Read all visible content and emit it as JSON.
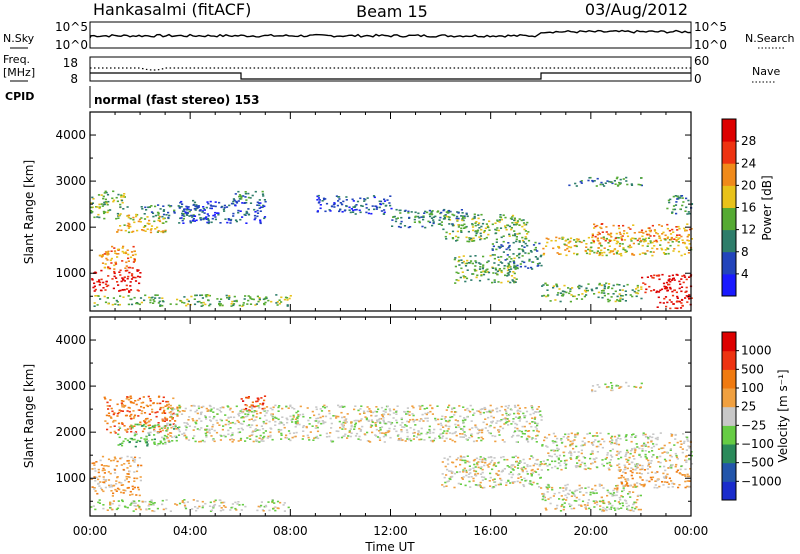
{
  "header": {
    "station": "Hankasalmi (fitACF)",
    "beam": "Beam 15",
    "date": "03/Aug/2012"
  },
  "top_panels": {
    "nsky_label": "N.Sky",
    "nsearch_label": "N.Search",
    "noise_ticks": [
      "10^5",
      "10^0"
    ],
    "freq_label_1": "Freq.",
    "freq_label_2": "[MHz]",
    "freq_ticks": [
      "18",
      "8"
    ],
    "nave_label": "Nave",
    "nave_ticks": [
      "60",
      "0"
    ],
    "cpid_label": "CPID",
    "cpid_value": "normal (fast stereo) 153"
  },
  "x_axis": {
    "title": "Time UT",
    "ticks": [
      "00:00",
      "04:00",
      "08:00",
      "12:00",
      "16:00",
      "20:00",
      "00:00"
    ]
  },
  "chart_data": [
    {
      "type": "heatmap",
      "name": "power",
      "ylabel": "Slant Range [km]",
      "ylim": [
        180,
        4500
      ],
      "yticks": [
        1000,
        2000,
        3000,
        4000
      ],
      "xlim_hours": [
        0,
        24
      ],
      "colorbar_label": "Power [dB]",
      "colorbar_ticks": [
        "4",
        "8",
        "12",
        "16",
        "20",
        "24",
        "28"
      ],
      "colorbar_colors": [
        "#1a1aff",
        "#2244bb",
        "#2e7d6a",
        "#55aa33",
        "#e8c21a",
        "#f08a1a",
        "#ee3311",
        "#dd0000"
      ],
      "echo_regions": [
        {
          "t": [
            0.0,
            2.0
          ],
          "r": [
            600,
            1100
          ],
          "level": 7
        },
        {
          "t": [
            0.3,
            1.8
          ],
          "r": [
            1100,
            1600
          ],
          "level": 5
        },
        {
          "t": [
            0.0,
            1.5
          ],
          "r": [
            2200,
            2800
          ],
          "level": 3
        },
        {
          "t": [
            1.0,
            3.0
          ],
          "r": [
            1900,
            2300
          ],
          "level": 4
        },
        {
          "t": [
            2.0,
            4.5
          ],
          "r": [
            2200,
            2500
          ],
          "level": 2
        },
        {
          "t": [
            0.0,
            8.0
          ],
          "r": [
            300,
            550
          ],
          "level": 3
        },
        {
          "t": [
            3.5,
            7.0
          ],
          "r": [
            2100,
            2600
          ],
          "level": 1
        },
        {
          "t": [
            5.5,
            7.0
          ],
          "r": [
            2600,
            2800
          ],
          "level": 2
        },
        {
          "t": [
            9.0,
            12.0
          ],
          "r": [
            2300,
            2700
          ],
          "level": 1
        },
        {
          "t": [
            12.0,
            15.0
          ],
          "r": [
            2000,
            2400
          ],
          "level": 2
        },
        {
          "t": [
            14.0,
            17.5
          ],
          "r": [
            1700,
            2300
          ],
          "level": 3
        },
        {
          "t": [
            14.5,
            17.0
          ],
          "r": [
            800,
            1400
          ],
          "level": 3
        },
        {
          "t": [
            16.0,
            18.0
          ],
          "r": [
            1100,
            1700
          ],
          "level": 2
        },
        {
          "t": [
            18.0,
            24.0
          ],
          "r": [
            1400,
            1800
          ],
          "level": 4
        },
        {
          "t": [
            20.0,
            24.0
          ],
          "r": [
            1700,
            2100
          ],
          "level": 5
        },
        {
          "t": [
            22.0,
            24.0
          ],
          "r": [
            600,
            1000
          ],
          "level": 7
        },
        {
          "t": [
            22.5,
            24.0
          ],
          "r": [
            250,
            550
          ],
          "level": 7
        },
        {
          "t": [
            18.0,
            22.0
          ],
          "r": [
            400,
            800
          ],
          "level": 3
        },
        {
          "t": [
            19.0,
            22.0
          ],
          "r": [
            2900,
            3100
          ],
          "level": 2
        },
        {
          "t": [
            23.0,
            24.0
          ],
          "r": [
            2300,
            2700
          ],
          "level": 2
        }
      ]
    },
    {
      "type": "heatmap",
      "name": "velocity",
      "ylabel": "Slant Range [km]",
      "ylim": [
        180,
        4500
      ],
      "yticks": [
        1000,
        2000,
        3000,
        4000
      ],
      "xlim_hours": [
        0,
        24
      ],
      "colorbar_label": "Velocity [m s⁻¹]",
      "colorbar_ticks": [
        "1000",
        "500",
        "100",
        "25",
        "−25",
        "−100",
        "−500",
        "−1000"
      ],
      "colorbar_colors": [
        "#1a2ccc",
        "#2255aa",
        "#2a8a5a",
        "#66cc44",
        "#c8c8c8",
        "#f0a040",
        "#f07a10",
        "#ee3311",
        "#dd0000"
      ],
      "echo_regions": [
        {
          "t": [
            0.0,
            2.0
          ],
          "r": [
            600,
            1500
          ],
          "level": 5
        },
        {
          "t": [
            0.5,
            3.5
          ],
          "r": [
            2000,
            2800
          ],
          "level": 6
        },
        {
          "t": [
            1.0,
            3.5
          ],
          "r": [
            1700,
            2200
          ],
          "level": 3
        },
        {
          "t": [
            0.0,
            8.0
          ],
          "r": [
            300,
            550
          ],
          "level": 4
        },
        {
          "t": [
            6.0,
            7.0
          ],
          "r": [
            2400,
            2800
          ],
          "level": 7
        },
        {
          "t": [
            3.0,
            8.0
          ],
          "r": [
            1800,
            2600
          ],
          "level": 4
        },
        {
          "t": [
            8.0,
            18.0
          ],
          "r": [
            1800,
            2600
          ],
          "level": 4
        },
        {
          "t": [
            14.0,
            18.0
          ],
          "r": [
            800,
            1500
          ],
          "level": 4
        },
        {
          "t": [
            18.0,
            24.0
          ],
          "r": [
            1200,
            2000
          ],
          "level": 4
        },
        {
          "t": [
            18.0,
            22.0
          ],
          "r": [
            300,
            900
          ],
          "level": 4
        },
        {
          "t": [
            21.0,
            24.0
          ],
          "r": [
            800,
            1200
          ],
          "level": 5
        },
        {
          "t": [
            20.0,
            22.0
          ],
          "r": [
            2900,
            3100
          ],
          "level": 4
        }
      ]
    }
  ]
}
